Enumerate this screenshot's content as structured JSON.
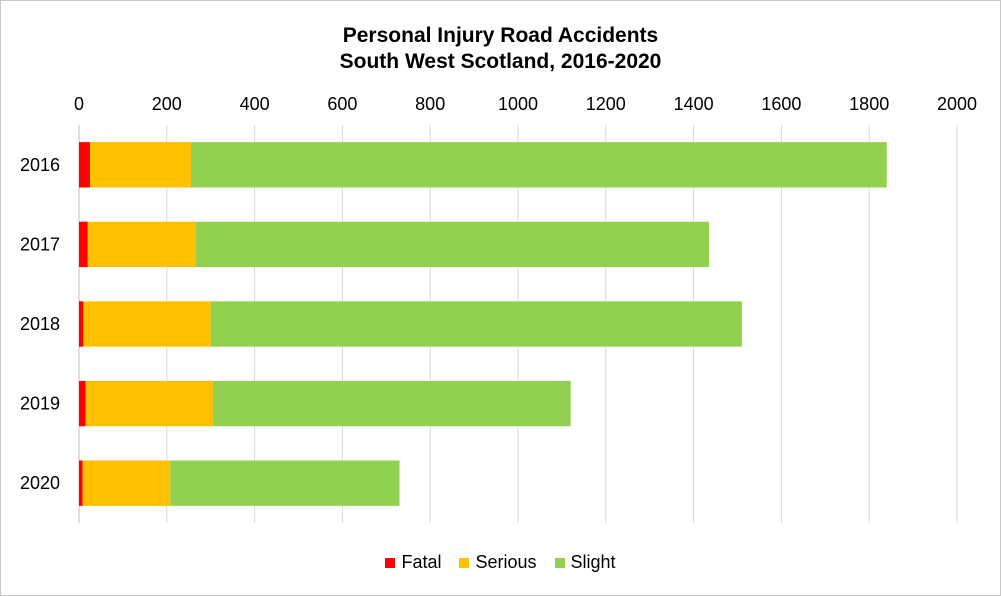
{
  "chart_data": {
    "type": "bar",
    "orientation": "horizontal",
    "stacked": true,
    "title_line1": "Personal Injury Road Accidents",
    "title_line2": "South West Scotland, 2016-2020",
    "categories": [
      "2016",
      "2017",
      "2018",
      "2019",
      "2020"
    ],
    "series": [
      {
        "name": "Fatal",
        "color": "#ff0000",
        "values": [
          25,
          20,
          10,
          15,
          8
        ]
      },
      {
        "name": "Serious",
        "color": "#ffc000",
        "values": [
          230,
          245,
          290,
          290,
          200
        ]
      },
      {
        "name": "Slight",
        "color": "#92d050",
        "values": [
          1585,
          1170,
          1210,
          815,
          522
        ]
      }
    ],
    "xlim": [
      0,
      2000
    ],
    "x_ticks": [
      "0",
      "200",
      "400",
      "600",
      "800",
      "1000",
      "1200",
      "1400",
      "1600",
      "1800",
      "2000"
    ],
    "x_axis_position": "top",
    "grid": true,
    "legend_position": "bottom"
  }
}
